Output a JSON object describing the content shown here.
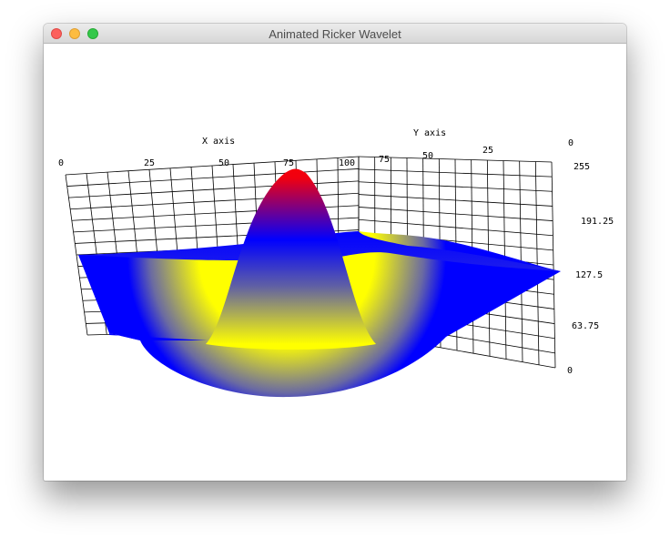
{
  "window": {
    "title": "Animated Ricker Wavelet",
    "buttons": {
      "close": "close-button",
      "minimize": "minimize-button",
      "zoom": "zoom-button"
    }
  },
  "colors": {
    "low": "#ffff00",
    "mid": "#0000ff",
    "high": "#ff0000",
    "grid": "#000000"
  },
  "chart_data": {
    "type": "surface",
    "function": "ricker-wavelet",
    "x_axis": {
      "label": "X axis",
      "range": [
        0,
        100
      ],
      "ticks": [
        "0",
        "25",
        "50",
        "75",
        "100"
      ]
    },
    "y_axis": {
      "label": "Y axis",
      "range": [
        0,
        100
      ],
      "ticks": [
        "75",
        "50",
        "25",
        "0"
      ]
    },
    "z_axis": {
      "label": "",
      "range": [
        0,
        255
      ],
      "ticks": [
        "255",
        "191.25",
        "127.5",
        "63.75",
        "0"
      ]
    },
    "colormap": [
      "yellow",
      "blue",
      "red"
    ],
    "grid": true
  }
}
